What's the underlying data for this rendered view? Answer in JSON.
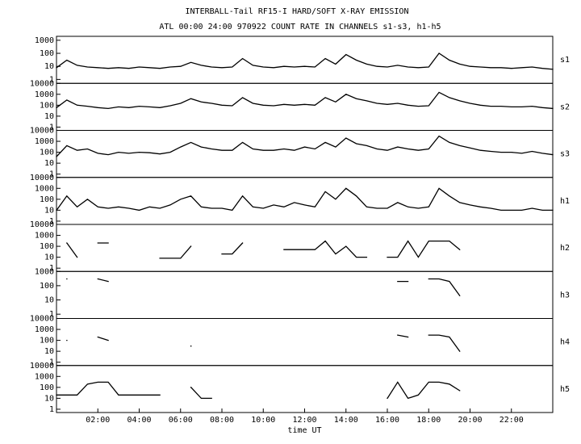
{
  "title": "INTERBALL-Tail RF15-I HARD/SOFT X-RAY EMISSION",
  "subtitle": "ATL 00:00 24:00 970922  COUNT RATE IN CHANNELS s1-s3, h1-h5",
  "chart_data": [
    {
      "type": "line",
      "log_y": true,
      "xlim": [
        0,
        24
      ],
      "ylim": [
        0.5,
        2000
      ],
      "yticks": [
        1,
        10,
        100,
        1000
      ],
      "x": [
        0,
        0.5,
        1,
        1.5,
        2,
        2.5,
        3,
        3.5,
        4,
        4.5,
        5,
        5.5,
        6,
        6.5,
        7,
        7.5,
        8,
        8.5,
        9,
        9.5,
        10,
        10.5,
        11,
        11.5,
        12,
        12.5,
        13,
        13.5,
        14,
        14.5,
        15,
        15.5,
        16,
        16.5,
        17,
        17.5,
        18,
        18.5,
        19,
        19.5,
        20,
        20.5,
        21,
        21.5,
        22,
        22.5,
        23,
        23.5,
        24
      ],
      "series": [
        {
          "name": "s1",
          "color": "#000000",
          "values": [
            8,
            30,
            12,
            9,
            8,
            7,
            8,
            7,
            9,
            8,
            7,
            9,
            10,
            20,
            12,
            9,
            8,
            9,
            40,
            12,
            9,
            8,
            10,
            9,
            10,
            9,
            40,
            15,
            80,
            30,
            15,
            10,
            9,
            12,
            9,
            8,
            9,
            100,
            30,
            15,
            10,
            9,
            8,
            8,
            7,
            8,
            9,
            7,
            6
          ]
        }
      ]
    },
    {
      "type": "line",
      "log_y": true,
      "xlim": [
        0,
        24
      ],
      "ylim": [
        0.5,
        10000
      ],
      "yticks": [
        1,
        10,
        100,
        1000,
        10000
      ],
      "x": [
        0,
        0.5,
        1,
        1.5,
        2,
        2.5,
        3,
        3.5,
        4,
        4.5,
        5,
        5.5,
        6,
        6.5,
        7,
        7.5,
        8,
        8.5,
        9,
        9.5,
        10,
        10.5,
        11,
        11.5,
        12,
        12.5,
        13,
        13.5,
        14,
        14.5,
        15,
        15.5,
        16,
        16.5,
        17,
        17.5,
        18,
        18.5,
        19,
        19.5,
        20,
        20.5,
        21,
        21.5,
        22,
        22.5,
        23,
        23.5,
        24
      ],
      "series": [
        {
          "name": "s2",
          "color": "#000000",
          "values": [
            60,
            300,
            100,
            80,
            60,
            50,
            70,
            60,
            80,
            70,
            60,
            90,
            150,
            400,
            200,
            150,
            100,
            90,
            500,
            150,
            100,
            90,
            120,
            100,
            120,
            100,
            500,
            200,
            1000,
            400,
            250,
            150,
            120,
            150,
            100,
            80,
            90,
            1500,
            500,
            250,
            150,
            100,
            80,
            80,
            70,
            70,
            80,
            60,
            50
          ]
        }
      ]
    },
    {
      "type": "line",
      "log_y": true,
      "xlim": [
        0,
        24
      ],
      "ylim": [
        0.5,
        10000
      ],
      "yticks": [
        1,
        10,
        100,
        1000,
        10000
      ],
      "x": [
        0,
        0.5,
        1,
        1.5,
        2,
        2.5,
        3,
        3.5,
        4,
        4.5,
        5,
        5.5,
        6,
        6.5,
        7,
        7.5,
        8,
        8.5,
        9,
        9.5,
        10,
        10.5,
        11,
        11.5,
        12,
        12.5,
        13,
        13.5,
        14,
        14.5,
        15,
        15.5,
        16,
        16.5,
        17,
        17.5,
        18,
        18.5,
        19,
        19.5,
        20,
        20.5,
        21,
        21.5,
        22,
        22.5,
        23,
        23.5,
        24
      ],
      "series": [
        {
          "name": "s3",
          "color": "#000000",
          "values": [
            40,
            400,
            150,
            200,
            80,
            60,
            100,
            80,
            100,
            90,
            70,
            100,
            300,
            800,
            300,
            200,
            150,
            150,
            800,
            200,
            150,
            150,
            200,
            150,
            300,
            200,
            800,
            300,
            2000,
            600,
            400,
            200,
            150,
            300,
            200,
            150,
            200,
            3000,
            800,
            400,
            250,
            150,
            120,
            100,
            100,
            80,
            120,
            80,
            60
          ]
        }
      ]
    },
    {
      "type": "line",
      "log_y": true,
      "xlim": [
        0,
        24
      ],
      "ylim": [
        0.5,
        10000
      ],
      "yticks": [
        1,
        10,
        100,
        1000,
        10000
      ],
      "x": [
        0,
        0.5,
        1,
        1.5,
        2,
        2.5,
        3,
        3.5,
        4,
        4.5,
        5,
        5.5,
        6,
        6.5,
        7,
        7.5,
        8,
        8.5,
        9,
        9.5,
        10,
        10.5,
        11,
        11.5,
        12,
        12.5,
        13,
        13.5,
        14,
        14.5,
        15,
        15.5,
        16,
        16.5,
        17,
        17.5,
        18,
        18.5,
        19,
        19.5,
        20,
        20.5,
        21,
        21.5,
        22,
        22.5,
        23,
        23.5,
        24
      ],
      "series": [
        {
          "name": "h1",
          "color": "#000000",
          "values": [
            10,
            200,
            20,
            100,
            20,
            15,
            20,
            15,
            10,
            20,
            15,
            30,
            100,
            200,
            20,
            15,
            15,
            10,
            200,
            20,
            15,
            30,
            20,
            50,
            30,
            20,
            500,
            100,
            1000,
            200,
            20,
            15,
            15,
            50,
            20,
            15,
            20,
            1000,
            200,
            50,
            30,
            20,
            15,
            10,
            10,
            10,
            15,
            10,
            10
          ]
        }
      ]
    },
    {
      "type": "line",
      "log_y": true,
      "xlim": [
        0,
        24
      ],
      "ylim": [
        0.5,
        10000
      ],
      "yticks": [
        1,
        10,
        100,
        1000,
        10000
      ],
      "x": [
        0,
        0.5,
        1,
        1.5,
        2,
        2.5,
        3,
        3.5,
        4,
        4.5,
        5,
        5.5,
        6,
        6.5,
        7,
        7.5,
        8,
        8.5,
        9,
        9.5,
        10,
        10.5,
        11,
        11.5,
        12,
        12.5,
        13,
        13.5,
        14,
        14.5,
        15,
        15.5,
        16,
        16.5,
        17,
        17.5,
        18,
        18.5,
        19,
        19.5,
        20,
        20.5,
        21,
        21.5,
        22,
        22.5,
        23,
        23.5,
        24
      ],
      "series": [
        {
          "name": "h2",
          "color": "#000000",
          "values": [
            null,
            200,
            10,
            null,
            200,
            200,
            null,
            null,
            null,
            null,
            8,
            8,
            8,
            100,
            null,
            null,
            20,
            20,
            200,
            null,
            null,
            null,
            50,
            50,
            50,
            50,
            300,
            20,
            100,
            10,
            10,
            null,
            10,
            10,
            300,
            10,
            300,
            300,
            300,
            50,
            null,
            null,
            null,
            null,
            null,
            null,
            null,
            null,
            null
          ]
        }
      ]
    },
    {
      "type": "line",
      "log_y": true,
      "xlim": [
        0,
        24
      ],
      "ylim": [
        0.5,
        1000
      ],
      "yticks": [
        1,
        10,
        100,
        1000
      ],
      "x": [
        0,
        0.5,
        1,
        1.5,
        2,
        2.5,
        3,
        3.5,
        4,
        4.5,
        5,
        5.5,
        6,
        6.5,
        7,
        7.5,
        8,
        8.5,
        9,
        9.5,
        10,
        10.5,
        11,
        11.5,
        12,
        12.5,
        13,
        13.5,
        14,
        14.5,
        15,
        15.5,
        16,
        16.5,
        17,
        17.5,
        18,
        18.5,
        19,
        19.5,
        20,
        20.5,
        21,
        21.5,
        22,
        22.5,
        23,
        23.5,
        24
      ],
      "series": [
        {
          "name": "h3",
          "color": "#000000",
          "values": [
            null,
            300,
            null,
            null,
            300,
            200,
            null,
            null,
            null,
            null,
            null,
            null,
            null,
            null,
            null,
            null,
            null,
            null,
            null,
            null,
            null,
            null,
            null,
            null,
            null,
            null,
            null,
            null,
            null,
            null,
            null,
            null,
            null,
            200,
            200,
            null,
            300,
            300,
            200,
            20,
            null,
            null,
            null,
            null,
            null,
            null,
            null,
            null,
            null
          ]
        }
      ]
    },
    {
      "type": "line",
      "log_y": true,
      "xlim": [
        0,
        24
      ],
      "ylim": [
        0.5,
        10000
      ],
      "yticks": [
        1,
        10,
        100,
        1000,
        10000
      ],
      "x": [
        0,
        0.5,
        1,
        1.5,
        2,
        2.5,
        3,
        3.5,
        4,
        4.5,
        5,
        5.5,
        6,
        6.5,
        7,
        7.5,
        8,
        8.5,
        9,
        9.5,
        10,
        10.5,
        11,
        11.5,
        12,
        12.5,
        13,
        13.5,
        14,
        14.5,
        15,
        15.5,
        16,
        16.5,
        17,
        17.5,
        18,
        18.5,
        19,
        19.5,
        20,
        20.5,
        21,
        21.5,
        22,
        22.5,
        23,
        23.5,
        24
      ],
      "series": [
        {
          "name": "h4",
          "color": "#000000",
          "values": [
            null,
            100,
            null,
            null,
            200,
            100,
            null,
            null,
            null,
            null,
            null,
            null,
            null,
            30,
            null,
            null,
            null,
            null,
            null,
            null,
            null,
            null,
            null,
            null,
            null,
            null,
            null,
            null,
            null,
            null,
            null,
            null,
            null,
            300,
            200,
            null,
            300,
            300,
            200,
            10,
            null,
            null,
            null,
            null,
            null,
            null,
            null,
            null,
            null
          ]
        }
      ]
    },
    {
      "type": "line",
      "log_y": true,
      "xlim": [
        0,
        24
      ],
      "ylim": [
        0.5,
        10000
      ],
      "yticks": [
        1,
        10,
        100,
        1000,
        10000
      ],
      "xticks": [
        {
          "value": 2,
          "label": "02:00"
        },
        {
          "value": 4,
          "label": "04:00"
        },
        {
          "value": 6,
          "label": "06:00"
        },
        {
          "value": 8,
          "label": "08:00"
        },
        {
          "value": 10,
          "label": "10:00"
        },
        {
          "value": 12,
          "label": "12:00"
        },
        {
          "value": 14,
          "label": "14:00"
        },
        {
          "value": 16,
          "label": "16:00"
        },
        {
          "value": 18,
          "label": "18:00"
        },
        {
          "value": 20,
          "label": "20:00"
        },
        {
          "value": 22,
          "label": "22:00"
        }
      ],
      "xlabel": "time UT",
      "x": [
        0,
        0.5,
        1,
        1.5,
        2,
        2.5,
        3,
        3.5,
        4,
        4.5,
        5,
        5.5,
        6,
        6.5,
        7,
        7.5,
        8,
        8.5,
        9,
        9.5,
        10,
        10.5,
        11,
        11.5,
        12,
        12.5,
        13,
        13.5,
        14,
        14.5,
        15,
        15.5,
        16,
        16.5,
        17,
        17.5,
        18,
        18.5,
        19,
        19.5,
        20,
        20.5,
        21,
        21.5,
        22,
        22.5,
        23,
        23.5,
        24
      ],
      "series": [
        {
          "name": "h5",
          "color": "#000000",
          "values": [
            20,
            20,
            20,
            200,
            300,
            300,
            20,
            20,
            20,
            20,
            20,
            null,
            null,
            100,
            10,
            10,
            null,
            null,
            null,
            null,
            null,
            null,
            null,
            null,
            null,
            null,
            null,
            null,
            null,
            null,
            null,
            null,
            10,
            300,
            10,
            20,
            300,
            300,
            200,
            50,
            null,
            null,
            null,
            null,
            null,
            null,
            null,
            null,
            null
          ]
        }
      ]
    }
  ]
}
